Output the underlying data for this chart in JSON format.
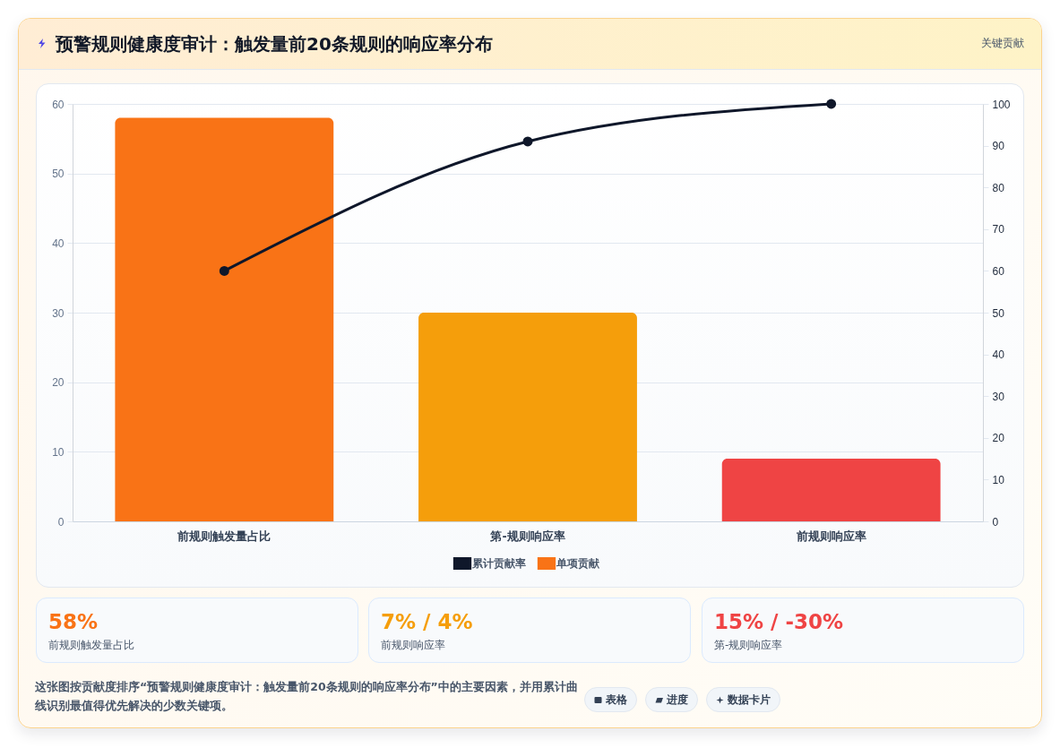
{
  "chart_data": {
    "type": "bar",
    "title": "预警规则健康度审计：触发量前20条规则的响应率分布",
    "categories": [
      "前规则触发量占比",
      "第-规则响应率",
      "前规则响应率"
    ],
    "series": [
      {
        "name": "累计贡献率",
        "type": "line",
        "axis": "y2",
        "color": "#0f172a",
        "values": [
          60,
          91,
          100
        ]
      },
      {
        "name": "单项贡献",
        "color": "#f97316",
        "colors": [
          "#f97316",
          "#f59e0b",
          "#ef4444"
        ],
        "values": [
          58,
          30,
          9
        ]
      }
    ],
    "ylim": [
      0,
      60
    ],
    "yticks": [
      0,
      10,
      20,
      30,
      40,
      50,
      60
    ],
    "y2lim": [
      0,
      100
    ],
    "y2ticks": [
      0,
      10,
      20,
      30,
      40,
      50,
      60,
      70,
      80,
      90,
      100
    ],
    "grid": "y",
    "legend": "bottom",
    "marker": "circle",
    "line_style": "solid",
    "annotations": [
      "关键贡献",
      "58%",
      "前规则触发量占比",
      "7% / 4%",
      "前规则响应率",
      "15% / -30%",
      "第-规则响应率",
      "这张图按贡献度排序“预警规则健康度审计：触发量前20条规则的响应率分布”中的主要因素，并用累计曲线识别最值得优先解决的少数关键项。",
      "表格",
      "进度",
      "数据卡片"
    ]
  }
}
